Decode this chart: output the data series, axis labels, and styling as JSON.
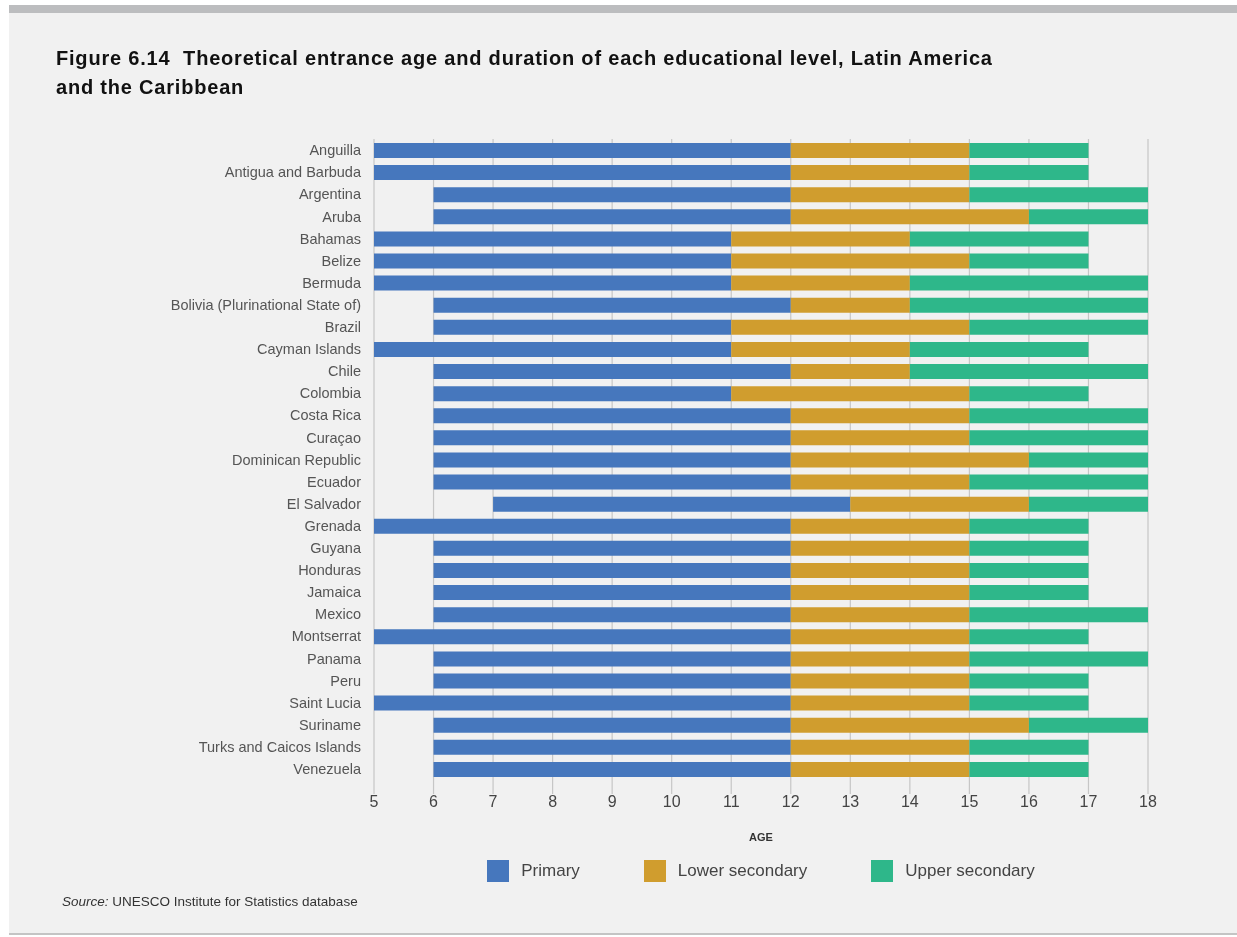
{
  "chart_data": {
    "type": "bar",
    "orientation": "horizontal",
    "title": "Figure 6.14  Theoretical entrance age and duration of each educational level, Latin America and the Caribbean",
    "xlabel": "AGE",
    "categories": [
      "Anguilla",
      "Antigua and Barbuda",
      "Argentina",
      "Aruba",
      "Bahamas",
      "Belize",
      "Bermuda",
      "Bolivia (Plurinational State of)",
      "Brazil",
      "Cayman Islands",
      "Chile",
      "Colombia",
      "Costa Rica",
      "Curaçao",
      "Dominican Republic",
      "Ecuador",
      "El Salvador",
      "Grenada",
      "Guyana",
      "Honduras",
      "Jamaica",
      "Mexico",
      "Montserrat",
      "Panama",
      "Peru",
      "Saint Lucia",
      "Suriname",
      "Turks and Caicos Islands",
      "Venezuela"
    ],
    "series": [
      {
        "name": "Primary",
        "color": "#4677bd",
        "base": [
          5,
          5,
          6,
          6,
          5,
          5,
          5,
          6,
          6,
          5,
          6,
          6,
          6,
          6,
          6,
          6,
          7,
          5,
          6,
          6,
          6,
          6,
          5,
          6,
          6,
          5,
          6,
          6,
          6
        ],
        "values": [
          7,
          7,
          6,
          6,
          6,
          6,
          6,
          6,
          5,
          6,
          6,
          5,
          6,
          6,
          6,
          6,
          6,
          7,
          6,
          6,
          6,
          6,
          7,
          6,
          6,
          7,
          6,
          6,
          6
        ]
      },
      {
        "name": "Lower secondary",
        "color": "#d09d2e",
        "base": [
          12,
          12,
          12,
          12,
          11,
          11,
          11,
          12,
          11,
          11,
          12,
          11,
          12,
          12,
          12,
          12,
          13,
          12,
          12,
          12,
          12,
          12,
          12,
          12,
          12,
          12,
          12,
          12,
          12
        ],
        "values": [
          3,
          3,
          3,
          4,
          3,
          4,
          3,
          2,
          4,
          3,
          2,
          4,
          3,
          3,
          4,
          3,
          3,
          3,
          3,
          3,
          3,
          3,
          3,
          3,
          3,
          3,
          4,
          3,
          3
        ]
      },
      {
        "name": "Upper secondary",
        "color": "#2eb78a",
        "base": [
          15,
          15,
          15,
          16,
          14,
          15,
          14,
          14,
          15,
          14,
          14,
          15,
          15,
          15,
          16,
          15,
          16,
          15,
          15,
          15,
          15,
          15,
          15,
          15,
          15,
          15,
          16,
          15,
          15
        ],
        "values": [
          2,
          2,
          3,
          2,
          3,
          2,
          4,
          4,
          3,
          3,
          4,
          2,
          3,
          3,
          2,
          3,
          2,
          2,
          2,
          2,
          2,
          3,
          2,
          3,
          2,
          2,
          2,
          2,
          2
        ]
      }
    ],
    "xlim": [
      5,
      18
    ],
    "xticks": [
      5,
      6,
      7,
      8,
      9,
      10,
      11,
      12,
      13,
      14,
      15,
      16,
      17,
      18
    ],
    "grid": "x",
    "legend": "bottom",
    "annotations": [
      "Source: UNESCO Institute for Statistics database"
    ]
  }
}
